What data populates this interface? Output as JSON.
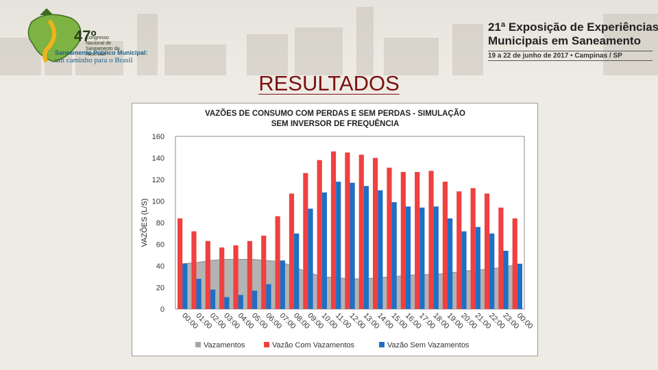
{
  "header": {
    "logo": {
      "number": "47º",
      "subtitle": "Congresso Nacional de Saneamento da Assemae",
      "line1": "Saneamento Público Municipal:",
      "line2": "um caminho para o Brasil"
    },
    "event": {
      "title_line1": "21ª Exposição de Experiências",
      "title_line2": "Municipais em Saneamento",
      "date": "19 a 22 de junho de 2017 • Campinas / SP"
    }
  },
  "slide": {
    "title": "RESULTADOS"
  },
  "colors": {
    "vazamentos": "#a6a6a6",
    "com": "#f04040",
    "sem": "#1f6fc4",
    "title": "#7a1010"
  },
  "chart_data": {
    "type": "bar",
    "title_line1": "VAZÕES DE CONSUMO COM PERDAS E SEM PERDAS - SIMULAÇÃO",
    "title_line2": "SEM INVERSOR DE FREQUÊNCIA",
    "ylabel": "VAZÕES (L/S)",
    "ylim": [
      0,
      160
    ],
    "yticks": [
      0,
      20,
      40,
      60,
      80,
      100,
      120,
      140,
      160
    ],
    "categories": [
      "00:00",
      "01:00",
      "02:00",
      "03:00",
      "04:00",
      "05:00",
      "06:00",
      "07:00",
      "08:00",
      "09:00",
      "10:00",
      "11:00",
      "12:00",
      "13:00",
      "14:00",
      "15:00",
      "16:00",
      "17:00",
      "18:00",
      "19:00",
      "20:00",
      "21:00",
      "22:00",
      "23:00",
      "00:00"
    ],
    "series": [
      {
        "name": "Vazamentos",
        "kind": "area",
        "values": [
          42,
          43,
          45,
          46,
          46,
          46,
          45,
          44,
          39,
          34,
          30,
          29,
          28,
          28,
          29,
          30,
          31,
          32,
          32,
          33,
          35,
          36,
          37,
          39,
          41
        ]
      },
      {
        "name": "Vazão Com Vazamentos",
        "kind": "bar",
        "values": [
          84,
          72,
          63,
          57,
          59,
          63,
          68,
          86,
          107,
          126,
          138,
          146,
          145,
          143,
          140,
          131,
          127,
          127,
          128,
          118,
          109,
          112,
          107,
          94,
          84
        ]
      },
      {
        "name": "Vazão Sem Vazamentos",
        "kind": "bar",
        "values": [
          42,
          28,
          18,
          11,
          13,
          17,
          23,
          45,
          70,
          93,
          108,
          118,
          117,
          114,
          110,
          99,
          95,
          94,
          95,
          84,
          72,
          76,
          70,
          54,
          42
        ]
      }
    ],
    "legend": [
      "Vazamentos",
      "Vazão Com Vazamentos",
      "Vazão Sem Vazamentos"
    ],
    "legend_position": "bottom",
    "grid": false
  }
}
